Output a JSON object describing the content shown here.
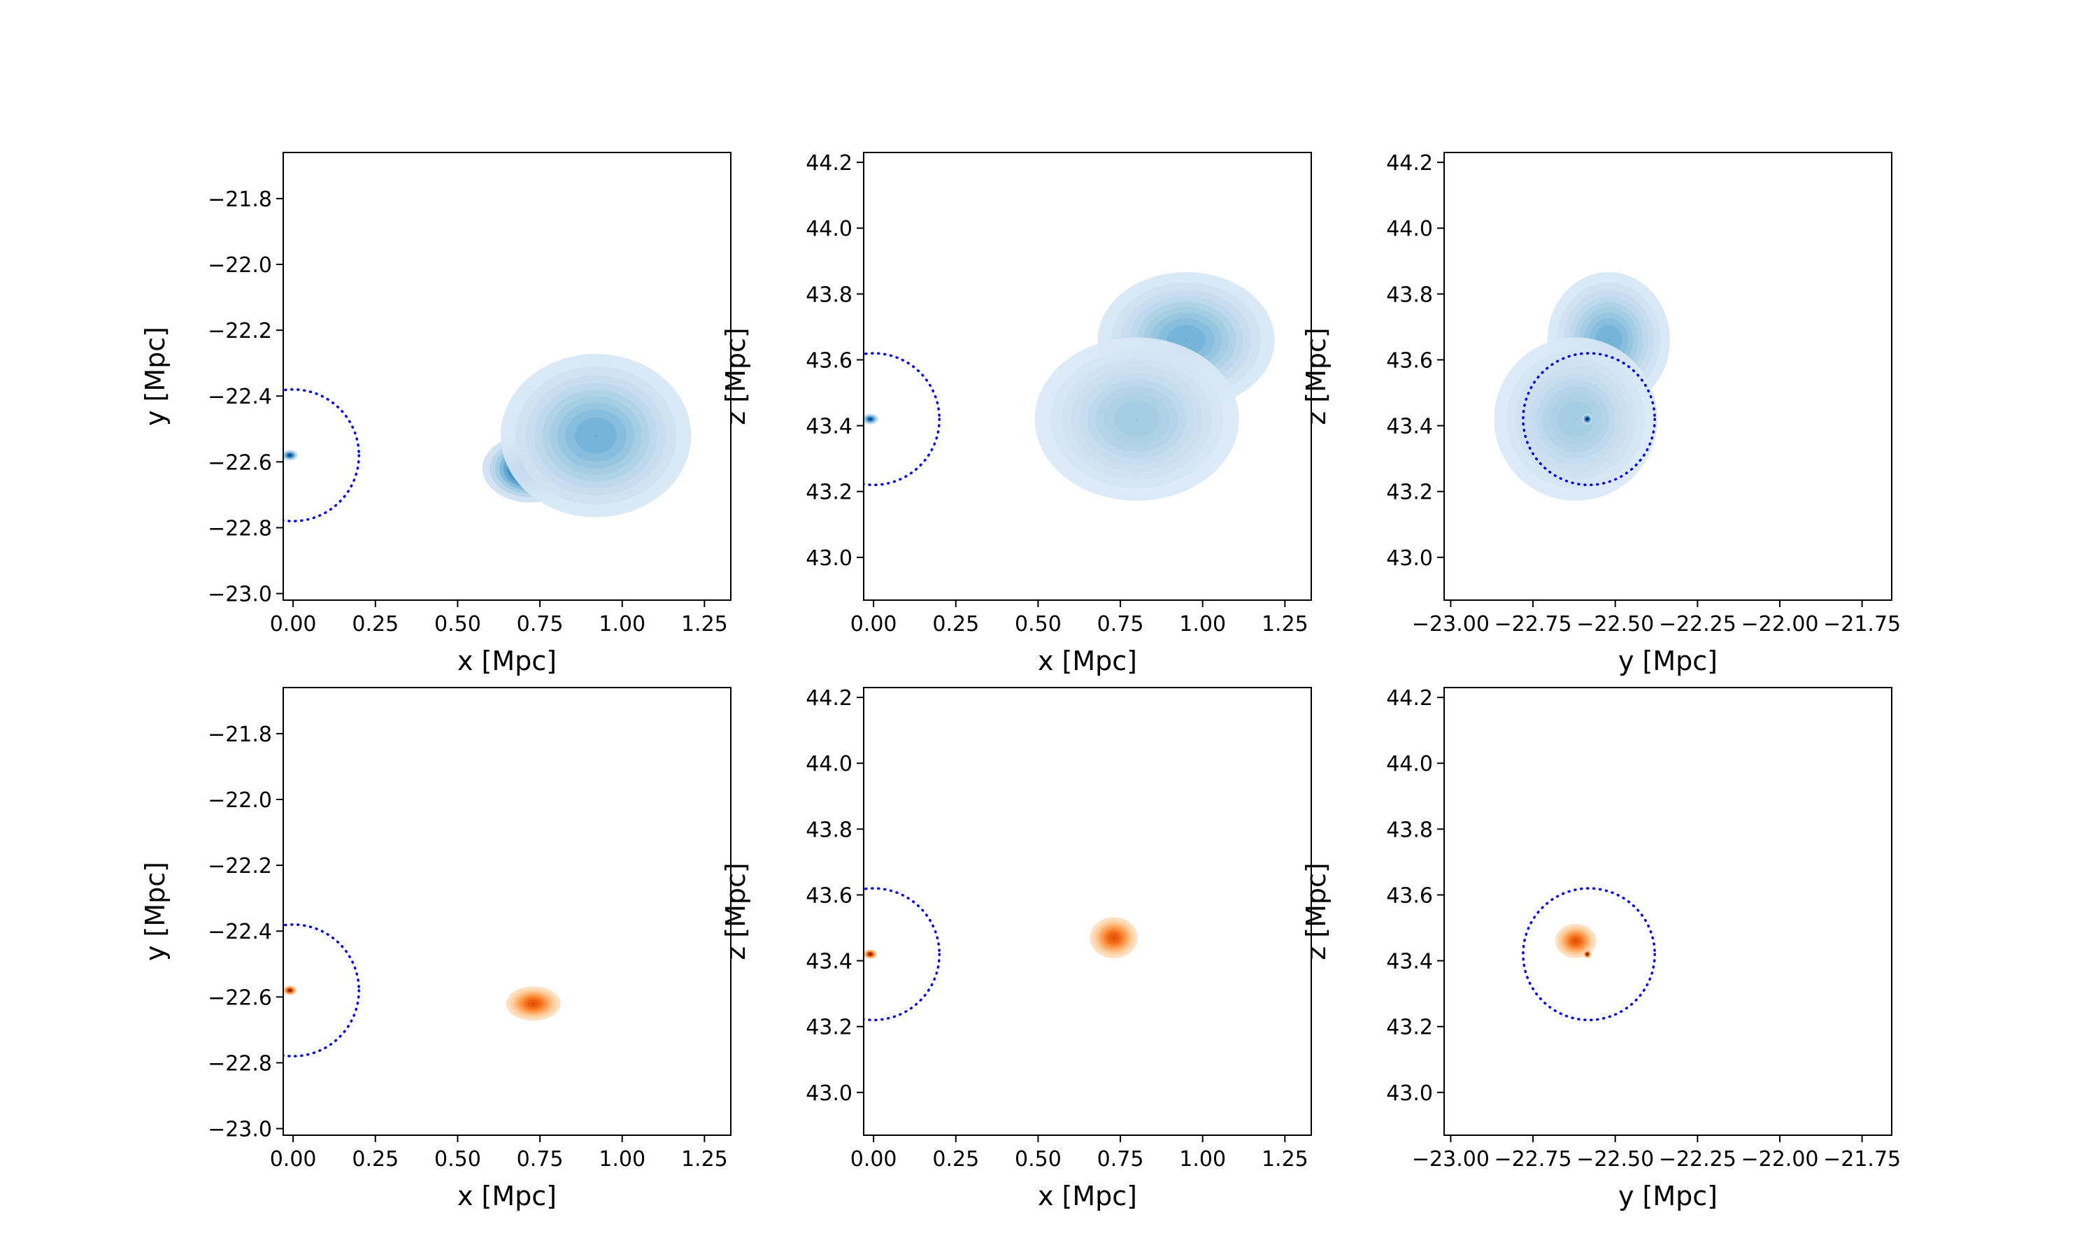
{
  "chart_data": [
    {
      "type": "heatmap",
      "panel": "top-left",
      "colormap": "blues",
      "xlabel": "x [Mpc]",
      "ylabel": "y [Mpc]",
      "xlim": [
        -0.03,
        1.33
      ],
      "ylim": [
        -23.02,
        -21.66
      ],
      "xticks": [
        0.0,
        0.25,
        0.5,
        0.75,
        1.0,
        1.25
      ],
      "xticklabels": [
        "0.00",
        "0.25",
        "0.50",
        "0.75",
        "1.00",
        "1.25"
      ],
      "yticks": [
        -23.0,
        -22.8,
        -22.6,
        -22.4,
        -22.2,
        -22.0,
        -21.8
      ],
      "yticklabels": [
        "−23.0",
        "−22.8",
        "−22.6",
        "−22.4",
        "−22.2",
        "−22.0",
        "−21.8"
      ],
      "circle": {
        "center": [
          0.0,
          -22.58
        ],
        "radius": 0.2,
        "style": "dotted",
        "color": "#0000ff"
      },
      "blobs": [
        {
          "center": [
            0.72,
            -22.62
          ],
          "sigma": [
            0.07,
            0.05
          ],
          "peak": 0.95
        },
        {
          "center": [
            0.92,
            -22.52
          ],
          "sigma": [
            0.14,
            0.12
          ],
          "peak": 0.45
        },
        {
          "center": [
            -0.01,
            -22.58
          ],
          "sigma": [
            0.012,
            0.008
          ],
          "peak": 0.9
        }
      ]
    },
    {
      "type": "heatmap",
      "panel": "top-middle",
      "colormap": "blues",
      "xlabel": "x [Mpc]",
      "ylabel": "z [Mpc]",
      "xlim": [
        -0.03,
        1.33
      ],
      "ylim": [
        42.87,
        44.23
      ],
      "xticks": [
        0.0,
        0.25,
        0.5,
        0.75,
        1.0,
        1.25
      ],
      "xticklabels": [
        "0.00",
        "0.25",
        "0.50",
        "0.75",
        "1.00",
        "1.25"
      ],
      "yticks": [
        43.0,
        43.2,
        43.4,
        43.6,
        43.8,
        44.0,
        44.2
      ],
      "yticklabels": [
        "43.0",
        "43.2",
        "43.4",
        "43.6",
        "43.8",
        "44.0",
        "44.2"
      ],
      "circle": {
        "center": [
          0.0,
          43.42
        ],
        "radius": 0.2,
        "style": "dotted",
        "color": "#0000ff"
      },
      "blobs": [
        {
          "center": [
            0.73,
            43.46
          ],
          "sigma": [
            0.07,
            0.06
          ],
          "peak": 0.95
        },
        {
          "center": [
            0.95,
            43.66
          ],
          "sigma": [
            0.13,
            0.1
          ],
          "peak": 0.45
        },
        {
          "center": [
            0.8,
            43.42
          ],
          "sigma": [
            0.15,
            0.12
          ],
          "peak": 0.3
        },
        {
          "center": [
            -0.01,
            43.42
          ],
          "sigma": [
            0.012,
            0.008
          ],
          "peak": 0.9
        }
      ]
    },
    {
      "type": "heatmap",
      "panel": "top-right",
      "colormap": "blues",
      "xlabel": "y [Mpc]",
      "ylabel": "z [Mpc]",
      "xlim": [
        -23.02,
        -21.66
      ],
      "ylim": [
        42.87,
        44.23
      ],
      "xticks": [
        -23.0,
        -22.75,
        -22.5,
        -22.25,
        -22.0,
        -21.75
      ],
      "xticklabels": [
        "−23.00",
        "−22.75",
        "−22.50",
        "−22.25",
        "−22.00",
        "−21.75"
      ],
      "yticks": [
        43.0,
        43.2,
        43.4,
        43.6,
        43.8,
        44.0,
        44.2
      ],
      "yticklabels": [
        "43.0",
        "43.2",
        "43.4",
        "43.6",
        "43.8",
        "44.0",
        "44.2"
      ],
      "circle": {
        "center": [
          -22.58,
          43.42
        ],
        "radius": 0.2,
        "style": "dotted",
        "color": "#0000ff"
      },
      "blobs": [
        {
          "center": [
            -22.62,
            43.46
          ],
          "sigma": [
            0.05,
            0.06
          ],
          "peak": 0.95
        },
        {
          "center": [
            -22.52,
            43.66
          ],
          "sigma": [
            0.09,
            0.1
          ],
          "peak": 0.45
        },
        {
          "center": [
            -22.62,
            43.42
          ],
          "sigma": [
            0.12,
            0.12
          ],
          "peak": 0.3
        },
        {
          "center": [
            -22.585,
            43.42
          ],
          "sigma": [
            0.008,
            0.008
          ],
          "peak": 1.0
        }
      ]
    },
    {
      "type": "heatmap",
      "panel": "bottom-left",
      "colormap": "oranges",
      "xlabel": "x [Mpc]",
      "ylabel": "y [Mpc]",
      "xlim": [
        -0.03,
        1.33
      ],
      "ylim": [
        -23.02,
        -21.66
      ],
      "xticks": [
        0.0,
        0.25,
        0.5,
        0.75,
        1.0,
        1.25
      ],
      "xticklabels": [
        "0.00",
        "0.25",
        "0.50",
        "0.75",
        "1.00",
        "1.25"
      ],
      "yticks": [
        -23.0,
        -22.8,
        -22.6,
        -22.4,
        -22.2,
        -22.0,
        -21.8
      ],
      "yticklabels": [
        "−23.0",
        "−22.8",
        "−22.6",
        "−22.4",
        "−22.2",
        "−22.0",
        "−21.8"
      ],
      "circle": {
        "center": [
          0.0,
          -22.58
        ],
        "radius": 0.2,
        "style": "dotted",
        "color": "#0000ff"
      },
      "blobs": [
        {
          "center": [
            0.73,
            -22.62
          ],
          "sigma": [
            0.04,
            0.025
          ],
          "peak": 0.7
        },
        {
          "center": [
            -0.01,
            -22.58
          ],
          "sigma": [
            0.01,
            0.007
          ],
          "peak": 1.0
        }
      ]
    },
    {
      "type": "heatmap",
      "panel": "bottom-middle",
      "colormap": "oranges",
      "xlabel": "x [Mpc]",
      "ylabel": "z [Mpc]",
      "xlim": [
        -0.03,
        1.33
      ],
      "ylim": [
        42.87,
        44.23
      ],
      "xticks": [
        0.0,
        0.25,
        0.5,
        0.75,
        1.0,
        1.25
      ],
      "xticklabels": [
        "0.00",
        "0.25",
        "0.50",
        "0.75",
        "1.00",
        "1.25"
      ],
      "yticks": [
        43.0,
        43.2,
        43.4,
        43.6,
        43.8,
        44.0,
        44.2
      ],
      "yticklabels": [
        "43.0",
        "43.2",
        "43.4",
        "43.6",
        "43.8",
        "44.0",
        "44.2"
      ],
      "circle": {
        "center": [
          0.0,
          43.42
        ],
        "radius": 0.2,
        "style": "dotted",
        "color": "#0000ff"
      },
      "blobs": [
        {
          "center": [
            0.73,
            43.47
          ],
          "sigma": [
            0.035,
            0.03
          ],
          "peak": 0.7
        },
        {
          "center": [
            -0.01,
            43.42
          ],
          "sigma": [
            0.01,
            0.007
          ],
          "peak": 1.0
        }
      ]
    },
    {
      "type": "heatmap",
      "panel": "bottom-right",
      "colormap": "oranges",
      "xlabel": "y [Mpc]",
      "ylabel": "z [Mpc]",
      "xlim": [
        -23.02,
        -21.66
      ],
      "ylim": [
        42.87,
        44.23
      ],
      "xticks": [
        -23.0,
        -22.75,
        -22.5,
        -22.25,
        -22.0,
        -21.75
      ],
      "xticklabels": [
        "−23.00",
        "−22.75",
        "−22.50",
        "−22.25",
        "−22.00",
        "−21.75"
      ],
      "yticks": [
        43.0,
        43.2,
        43.4,
        43.6,
        43.8,
        44.0,
        44.2
      ],
      "yticklabels": [
        "43.0",
        "43.2",
        "43.4",
        "43.6",
        "43.8",
        "44.0",
        "44.2"
      ],
      "circle": {
        "center": [
          -22.58,
          43.42
        ],
        "radius": 0.2,
        "style": "dotted",
        "color": "#0000ff"
      },
      "blobs": [
        {
          "center": [
            -22.62,
            43.46
          ],
          "sigma": [
            0.03,
            0.025
          ],
          "peak": 0.7
        },
        {
          "center": [
            -22.585,
            43.42
          ],
          "sigma": [
            0.006,
            0.006
          ],
          "peak": 1.0
        }
      ]
    }
  ],
  "colors": {
    "blues": [
      "#f7fbff",
      "#deebf7",
      "#c6dbef",
      "#9ecae1",
      "#6baed6",
      "#4292c6",
      "#2171b5",
      "#08519c",
      "#08306b"
    ],
    "oranges": [
      "#fff5eb",
      "#fee6ce",
      "#fdd0a2",
      "#fdae6b",
      "#fd8d3c",
      "#f16913",
      "#d94801",
      "#a63603",
      "#7f2704"
    ],
    "circle": "#0000ff",
    "axes": "#000000"
  }
}
